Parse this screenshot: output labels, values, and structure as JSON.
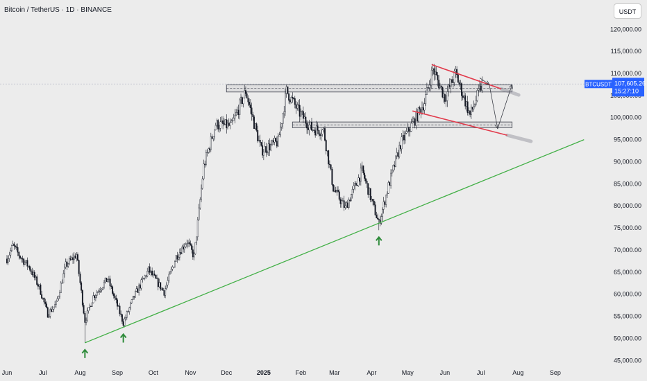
{
  "header": {
    "title": "Bitcoin / TetherUS · 1D · BINANCE",
    "currency_button": "USDT"
  },
  "price_label": {
    "symbol": "BTCUSDT",
    "price": "107,605.26",
    "countdown": "15:27:10"
  },
  "colors": {
    "background": "#ececec",
    "candle": "#131722",
    "support_line": "#43b047",
    "channel_line": "#e23b4c",
    "arrow_up": "#2e8b3a",
    "label_bg": "#2962ff"
  },
  "chart_data": {
    "type": "candlestick",
    "title": "Bitcoin / TetherUS · 1D · BINANCE",
    "ylim": [
      45000,
      123500
    ],
    "y_ticks": [
      {
        "value": 45000,
        "label": "45,000.00"
      },
      {
        "value": 50000,
        "label": "50,000.00"
      },
      {
        "value": 55000,
        "label": "55,000.00"
      },
      {
        "value": 60000,
        "label": "60,000.00"
      },
      {
        "value": 65000,
        "label": "65,000.00"
      },
      {
        "value": 70000,
        "label": "70,000.00"
      },
      {
        "value": 75000,
        "label": "75,000.00"
      },
      {
        "value": 80000,
        "label": "80,000.00"
      },
      {
        "value": 85000,
        "label": "85,000.00"
      },
      {
        "value": 90000,
        "label": "90,000.00"
      },
      {
        "value": 95000,
        "label": "95,000.00"
      },
      {
        "value": 100000,
        "label": "100,000.00"
      },
      {
        "value": 105000,
        "label": "105,000.00"
      },
      {
        "value": 110000,
        "label": "110,000.00"
      },
      {
        "value": 115000,
        "label": "115,000.00"
      },
      {
        "value": 120000,
        "label": "120,000.00"
      }
    ],
    "x_ticks": [
      {
        "date": "2024-06-01",
        "label": "Jun"
      },
      {
        "date": "2024-07-01",
        "label": "Jul"
      },
      {
        "date": "2024-08-01",
        "label": "Aug"
      },
      {
        "date": "2024-09-01",
        "label": "Sep"
      },
      {
        "date": "2024-10-01",
        "label": "Oct"
      },
      {
        "date": "2024-11-01",
        "label": "Nov"
      },
      {
        "date": "2024-12-01",
        "label": "Dec"
      },
      {
        "date": "2025-01-01",
        "label": "2025",
        "bold": true
      },
      {
        "date": "2025-02-01",
        "label": "Feb"
      },
      {
        "date": "2025-03-01",
        "label": "Mar"
      },
      {
        "date": "2025-04-01",
        "label": "Apr"
      },
      {
        "date": "2025-05-01",
        "label": "May"
      },
      {
        "date": "2025-06-01",
        "label": "Jun"
      },
      {
        "date": "2025-07-01",
        "label": "Jul"
      },
      {
        "date": "2025-08-01",
        "label": "Aug"
      },
      {
        "date": "2025-09-01",
        "label": "Sep"
      }
    ],
    "price_path": [
      [
        "2024-06-01",
        68000
      ],
      [
        "2024-06-06",
        71000
      ],
      [
        "2024-06-12",
        68500
      ],
      [
        "2024-06-20",
        66000
      ],
      [
        "2024-06-28",
        61500
      ],
      [
        "2024-07-05",
        55500
      ],
      [
        "2024-07-12",
        57800
      ],
      [
        "2024-07-20",
        66500
      ],
      [
        "2024-07-29",
        69000
      ],
      [
        "2024-08-05",
        54000
      ],
      [
        "2024-08-12",
        59500
      ],
      [
        "2024-08-24",
        63500
      ],
      [
        "2024-09-06",
        53500
      ],
      [
        "2024-09-15",
        59500
      ],
      [
        "2024-09-27",
        65500
      ],
      [
        "2024-10-10",
        60500
      ],
      [
        "2024-10-20",
        68500
      ],
      [
        "2024-10-29",
        72000
      ],
      [
        "2024-11-04",
        68500
      ],
      [
        "2024-11-12",
        89000
      ],
      [
        "2024-11-22",
        98500
      ],
      [
        "2024-12-05",
        98000
      ],
      [
        "2024-12-17",
        106000
      ],
      [
        "2024-12-30",
        92500
      ],
      [
        "2025-01-13",
        94500
      ],
      [
        "2025-01-20",
        106000
      ],
      [
        "2025-01-31",
        101000
      ],
      [
        "2025-02-10",
        97500
      ],
      [
        "2025-02-20",
        97000
      ],
      [
        "2025-02-28",
        84000
      ],
      [
        "2025-03-10",
        79500
      ],
      [
        "2025-03-24",
        88000
      ],
      [
        "2025-04-07",
        76000
      ],
      [
        "2025-04-15",
        84500
      ],
      [
        "2025-04-25",
        94000
      ],
      [
        "2025-05-08",
        100000
      ],
      [
        "2025-05-15",
        103500
      ],
      [
        "2025-05-22",
        111000
      ],
      [
        "2025-06-01",
        104500
      ],
      [
        "2025-06-10",
        110000
      ],
      [
        "2025-06-22",
        100500
      ],
      [
        "2025-07-02",
        107605
      ]
    ],
    "key_lows": [
      {
        "date": "2024-08-05",
        "low": 49000
      },
      {
        "date": "2024-09-06",
        "low": 52500
      },
      {
        "date": "2025-04-07",
        "low": 74500
      }
    ],
    "resistance_zone": {
      "from": "2024-12-01",
      "to": "2025-07-27",
      "low": 105800,
      "high": 107400
    },
    "support_zone": {
      "from": "2025-01-25",
      "to": "2025-07-27",
      "low": 97700,
      "high": 99000
    },
    "trendline_support": {
      "from": [
        "2024-08-05",
        49000
      ],
      "to": [
        "2025-09-25",
        95000
      ]
    },
    "channel_upper": {
      "from": [
        "2025-05-21",
        112000
      ],
      "to": [
        "2025-07-18",
        106500
      ]
    },
    "channel_lower": {
      "from": [
        "2025-05-05",
        101500
      ],
      "to": [
        "2025-07-23",
        96000
      ]
    },
    "projection_path": [
      [
        "2025-06-30",
        109000
      ],
      [
        "2025-07-08",
        107500
      ],
      [
        "2025-07-15",
        97500
      ],
      [
        "2025-07-27",
        107500
      ]
    ],
    "last_price": 107605.26
  }
}
